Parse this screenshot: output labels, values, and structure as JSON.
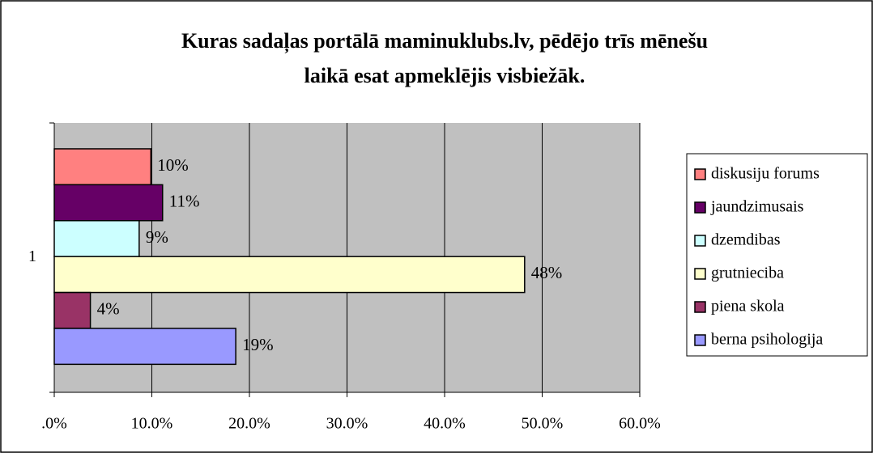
{
  "chart_data": {
    "type": "bar",
    "orientation": "horizontal",
    "title": [
      "Kuras sadaļas portālā maminuklubs.lv, pēdējo trīs mēnešu",
      "laikā esat apmeklējis visbiežāk."
    ],
    "categories": [
      "1"
    ],
    "series": [
      {
        "name": "diskusiju forums",
        "color": "#FF8080",
        "values": [
          9.9
        ],
        "value_labels": [
          "10%"
        ]
      },
      {
        "name": "jaundzimusais",
        "color": "#660066",
        "values": [
          11.1
        ],
        "value_labels": [
          "11%"
        ]
      },
      {
        "name": "dzemdibas",
        "color": "#CCFFFF",
        "values": [
          8.7
        ],
        "value_labels": [
          "9%"
        ]
      },
      {
        "name": "grutnieciba",
        "color": "#FFFFCC",
        "values": [
          48.2
        ],
        "value_labels": [
          "48%"
        ]
      },
      {
        "name": "piena skola",
        "color": "#993366",
        "values": [
          3.7
        ],
        "value_labels": [
          "4%"
        ]
      },
      {
        "name": "berna psihologija",
        "color": "#9999FF",
        "values": [
          18.6
        ],
        "value_labels": [
          "19%"
        ]
      }
    ],
    "xlim": [
      0,
      60
    ],
    "xticks": [
      {
        "value": 0,
        "label": ".0%"
      },
      {
        "value": 10,
        "label": "10.0%"
      },
      {
        "value": 20,
        "label": "20.0%"
      },
      {
        "value": 30,
        "label": "30.0%"
      },
      {
        "value": 40,
        "label": "40.0%"
      },
      {
        "value": 50,
        "label": "50.0%"
      },
      {
        "value": 60,
        "label": "60.0%"
      }
    ],
    "grid": true,
    "legend": "right"
  }
}
